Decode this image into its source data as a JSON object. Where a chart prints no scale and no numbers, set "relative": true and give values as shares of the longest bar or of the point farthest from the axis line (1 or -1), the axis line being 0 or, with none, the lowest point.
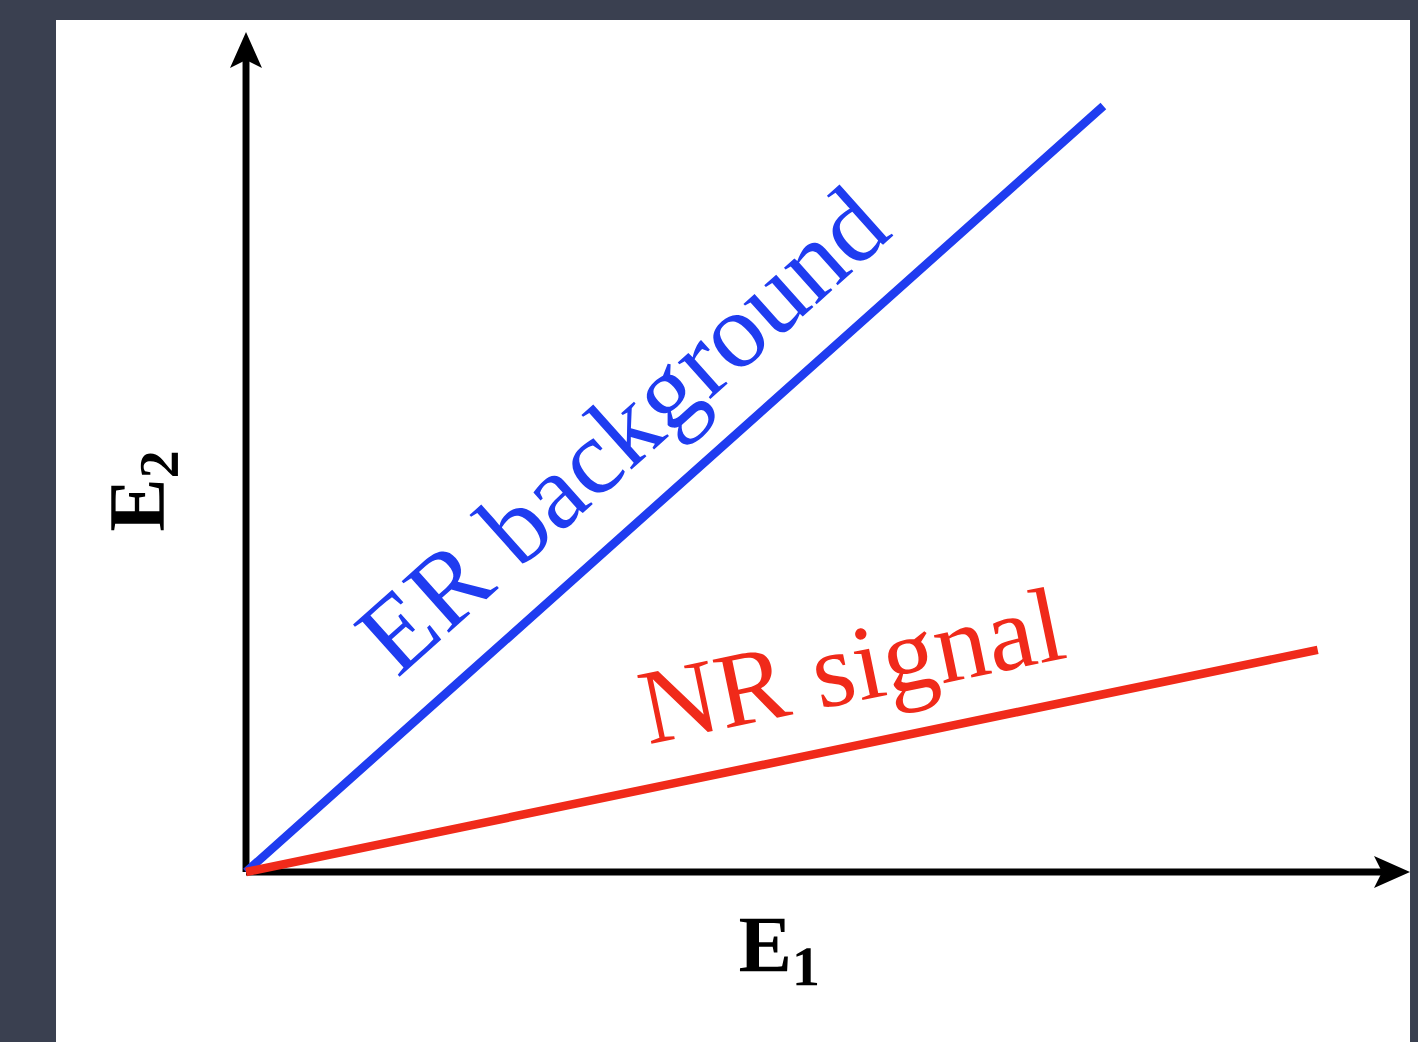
{
  "chart_data": {
    "type": "line",
    "relative": true,
    "xlabel": "E$_{1}$",
    "ylabel": "E$_{2}$",
    "categories": [
      null,
      null,
      null,
      null,
      null,
      null
    ],
    "series": [
      {
        "name": "ER background",
        "color": "#1f3cf0",
        "values": [
          0,
          0.25,
          0.5,
          0.75,
          1,
          null
        ]
      },
      {
        "name": "NR signal",
        "color": "#f02a1a",
        "values": [
          0,
          0.058,
          0.116,
          0.174,
          0.232,
          0.29
        ]
      }
    ]
  }
}
